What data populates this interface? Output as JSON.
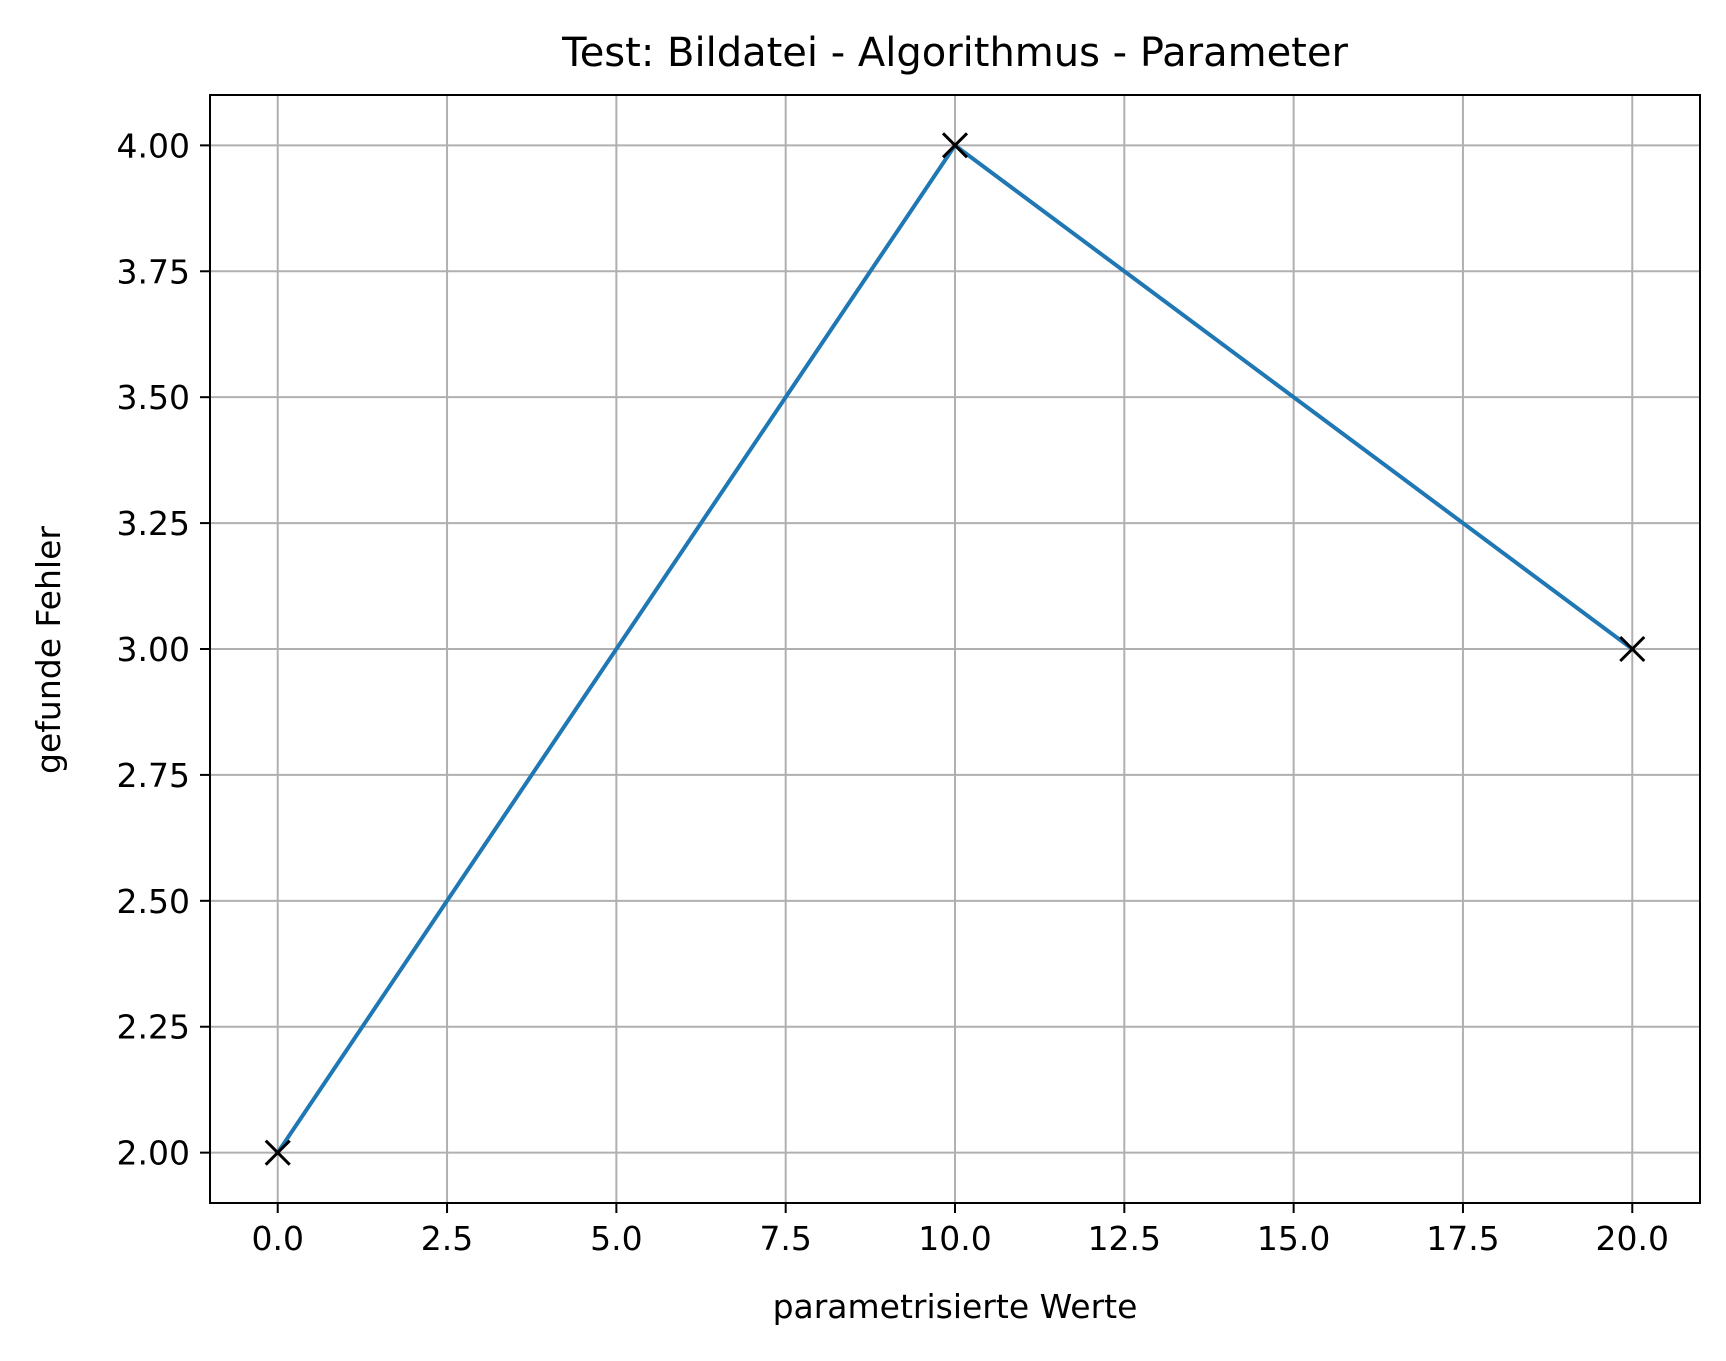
{
  "chart_data": {
    "type": "line",
    "title": "Test: Bildatei - Algorithmus - Parameter",
    "xlabel": "parametrisierte Werte",
    "ylabel": "gefunde Fehler",
    "xlim": [
      -1,
      21
    ],
    "ylim": [
      1.9,
      4.1
    ],
    "grid": true,
    "x_ticks": [
      0.0,
      2.5,
      5.0,
      7.5,
      10.0,
      12.5,
      15.0,
      17.5,
      20.0
    ],
    "x_tick_labels": [
      "0.0",
      "2.5",
      "5.0",
      "7.5",
      "10.0",
      "12.5",
      "15.0",
      "17.5",
      "20.0"
    ],
    "y_ticks": [
      2.0,
      2.25,
      2.5,
      2.75,
      3.0,
      3.25,
      3.5,
      3.75,
      4.0
    ],
    "y_tick_labels": [
      "2.00",
      "2.25",
      "2.50",
      "2.75",
      "3.00",
      "3.25",
      "3.50",
      "3.75",
      "4.00"
    ],
    "series": [
      {
        "x": [
          0,
          10,
          20
        ],
        "y": [
          2,
          4,
          3
        ],
        "line_color": "#1f77b4",
        "marker": "x",
        "marker_color": "#000000"
      }
    ],
    "colors": {
      "grid": "#b0b0b0",
      "axes": "#000000"
    }
  }
}
